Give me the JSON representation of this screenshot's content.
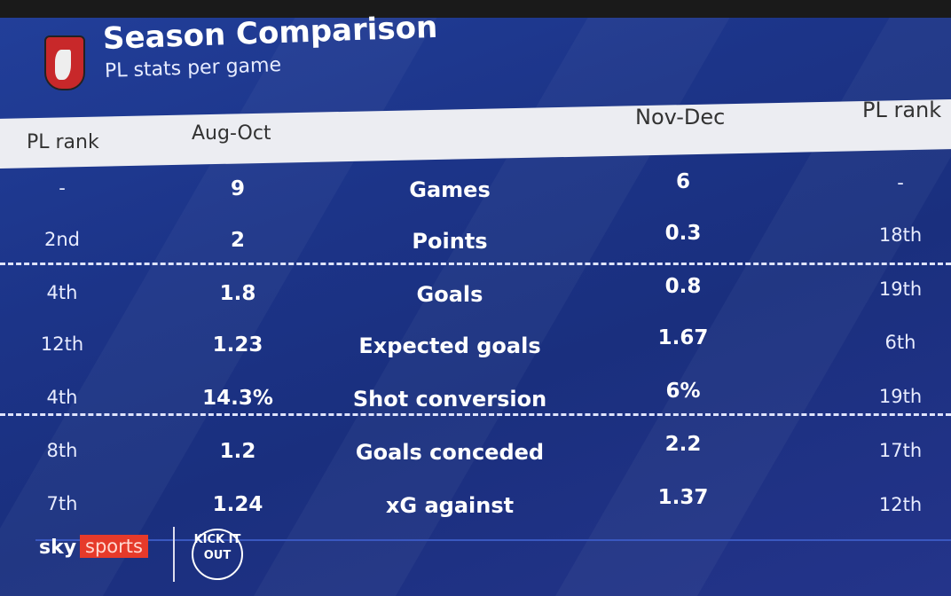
{
  "header": {
    "title": "Season Comparison",
    "subtitle": "PL stats per game",
    "crest": "AFC Bournemouth crest"
  },
  "columns": {
    "rank_left": "PL rank",
    "period1": "Aug-Oct",
    "period2": "Nov-Dec",
    "rank_right": "PL rank"
  },
  "rows": [
    {
      "rank1": "-",
      "v1": "9",
      "label": "Games",
      "v2": "6",
      "rank2": "-"
    },
    {
      "rank1": "2nd",
      "v1": "2",
      "label": "Points",
      "v2": "0.3",
      "rank2": "18th"
    },
    {
      "rank1": "4th",
      "v1": "1.8",
      "label": "Goals",
      "v2": "0.8",
      "rank2": "19th"
    },
    {
      "rank1": "12th",
      "v1": "1.23",
      "label": "Expected goals",
      "v2": "1.67",
      "rank2": "6th"
    },
    {
      "rank1": "4th",
      "v1": "14.3%",
      "label": "Shot conversion",
      "v2": "6%",
      "rank2": "19th"
    },
    {
      "rank1": "8th",
      "v1": "1.2",
      "label": "Goals conceded",
      "v2": "2.2",
      "rank2": "17th"
    },
    {
      "rank1": "7th",
      "v1": "1.24",
      "label": "xG against",
      "v2": "1.37",
      "rank2": "12th"
    }
  ],
  "footer": {
    "sky": "sky",
    "sports": "sports",
    "kick_it_out": "KICK IT OUT"
  }
}
